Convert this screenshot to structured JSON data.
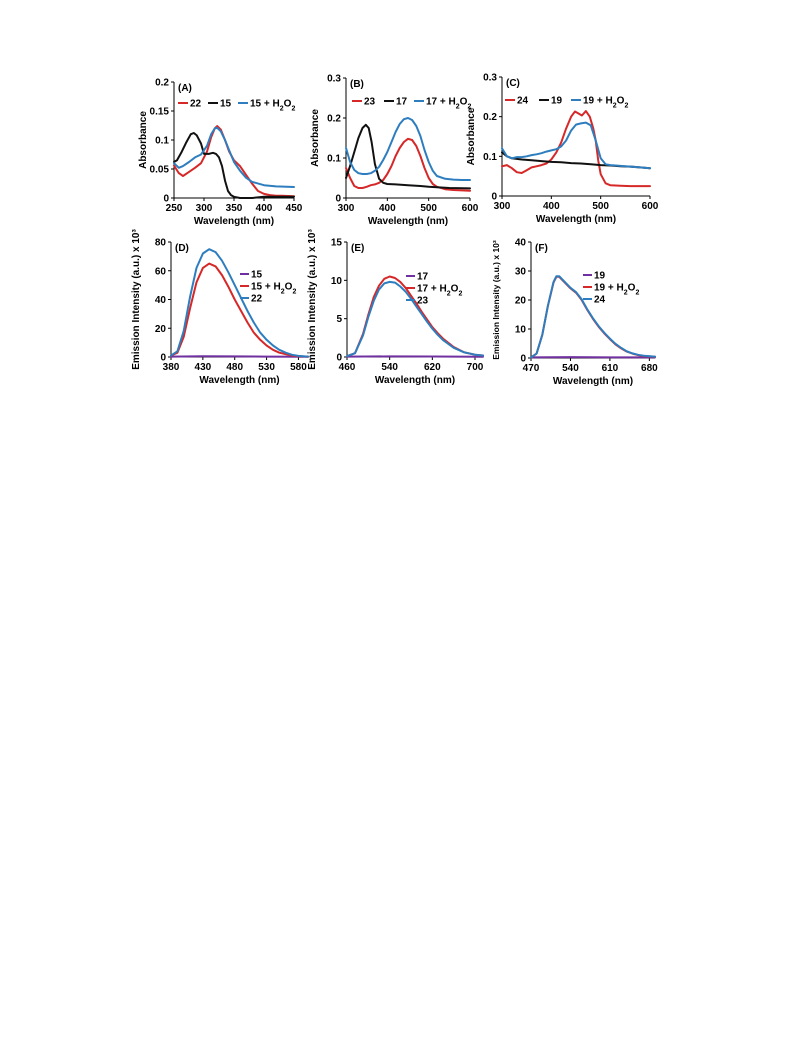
{
  "colors": {
    "red": "#d62828",
    "black": "#111111",
    "blue": "#2e7ebf",
    "purple": "#7030a0"
  },
  "chart_data": [
    {
      "id": "A",
      "panel_label": "(A)",
      "type": "line",
      "xlabel": "Wavelength (nm)",
      "ylabel": "Absorbance",
      "xlim": [
        250,
        450
      ],
      "ylim": [
        0,
        0.2
      ],
      "xticks": [
        250,
        300,
        350,
        400,
        450
      ],
      "yticks": [
        0,
        0.05,
        0.1,
        0.15,
        0.2
      ],
      "xtick_labels": [
        "250",
        "300",
        "350",
        "400",
        "450"
      ],
      "ytick_labels": [
        "0",
        "0.05",
        "0.1",
        "0.15",
        "0.2"
      ],
      "legend_position": "top",
      "series": [
        {
          "name": "22",
          "color": "#d62828",
          "x": [
            250,
            258,
            265,
            275,
            285,
            295,
            305,
            312,
            318,
            322,
            328,
            335,
            342,
            350,
            360,
            370,
            380,
            390,
            400,
            410,
            420,
            430,
            450
          ],
          "y": [
            0.056,
            0.043,
            0.038,
            0.045,
            0.052,
            0.06,
            0.08,
            0.105,
            0.12,
            0.124,
            0.118,
            0.1,
            0.08,
            0.065,
            0.055,
            0.04,
            0.025,
            0.012,
            0.007,
            0.005,
            0.004,
            0.004,
            0.003
          ]
        },
        {
          "name": "15",
          "color": "#111111",
          "x": [
            250,
            255,
            262,
            270,
            278,
            283,
            288,
            295,
            300,
            308,
            315,
            320,
            325,
            330,
            335,
            340,
            345,
            350,
            360,
            380,
            400,
            450
          ],
          "y": [
            0.062,
            0.065,
            0.078,
            0.095,
            0.11,
            0.112,
            0.108,
            0.094,
            0.076,
            0.076,
            0.078,
            0.076,
            0.07,
            0.055,
            0.03,
            0.012,
            0.005,
            0.002,
            0.0,
            0.0,
            0.002,
            0.002
          ]
        },
        {
          "name": "15 + H₂O₂",
          "color": "#2e7ebf",
          "x": [
            250,
            258,
            265,
            275,
            285,
            295,
            305,
            312,
            318,
            322,
            328,
            335,
            342,
            350,
            360,
            370,
            380,
            400,
            420,
            450
          ],
          "y": [
            0.06,
            0.052,
            0.055,
            0.062,
            0.07,
            0.075,
            0.09,
            0.11,
            0.12,
            0.121,
            0.115,
            0.1,
            0.082,
            0.062,
            0.047,
            0.035,
            0.028,
            0.022,
            0.02,
            0.019
          ]
        }
      ]
    },
    {
      "id": "B",
      "panel_label": "(B)",
      "type": "line",
      "xlabel": "Wavelength (nm)",
      "ylabel": "Absorbance",
      "xlim": [
        300,
        600
      ],
      "ylim": [
        0,
        0.3
      ],
      "xticks": [
        300,
        400,
        500,
        600
      ],
      "yticks": [
        0,
        0.1,
        0.2,
        0.3
      ],
      "xtick_labels": [
        "300",
        "400",
        "500",
        "600"
      ],
      "ytick_labels": [
        "0",
        "0.1",
        "0.2",
        "0.3"
      ],
      "legend_position": "top",
      "series": [
        {
          "name": "23",
          "color": "#d62828",
          "x": [
            300,
            310,
            320,
            330,
            340,
            350,
            360,
            370,
            380,
            390,
            400,
            410,
            420,
            430,
            440,
            450,
            460,
            470,
            480,
            490,
            500,
            510,
            520,
            540,
            560,
            580,
            600
          ],
          "y": [
            0.075,
            0.05,
            0.03,
            0.025,
            0.025,
            0.028,
            0.032,
            0.034,
            0.038,
            0.045,
            0.06,
            0.08,
            0.105,
            0.125,
            0.14,
            0.148,
            0.145,
            0.13,
            0.105,
            0.075,
            0.05,
            0.035,
            0.028,
            0.022,
            0.02,
            0.019,
            0.018
          ]
        },
        {
          "name": "17",
          "color": "#111111",
          "x": [
            300,
            310,
            320,
            330,
            340,
            348,
            355,
            362,
            370,
            380,
            390,
            400,
            420,
            450,
            480,
            500,
            550,
            600
          ],
          "y": [
            0.05,
            0.08,
            0.115,
            0.15,
            0.175,
            0.183,
            0.175,
            0.14,
            0.085,
            0.048,
            0.038,
            0.035,
            0.034,
            0.032,
            0.03,
            0.028,
            0.025,
            0.024
          ]
        },
        {
          "name": "17 + H₂O₂",
          "color": "#2e7ebf",
          "x": [
            300,
            310,
            320,
            330,
            340,
            350,
            360,
            370,
            380,
            390,
            400,
            410,
            420,
            430,
            440,
            450,
            460,
            470,
            480,
            490,
            500,
            510,
            520,
            540,
            560,
            580,
            600
          ],
          "y": [
            0.125,
            0.09,
            0.07,
            0.062,
            0.06,
            0.06,
            0.062,
            0.068,
            0.078,
            0.095,
            0.115,
            0.14,
            0.165,
            0.185,
            0.197,
            0.2,
            0.195,
            0.18,
            0.155,
            0.12,
            0.09,
            0.068,
            0.055,
            0.048,
            0.046,
            0.045,
            0.045
          ]
        }
      ]
    },
    {
      "id": "C",
      "panel_label": "(C)",
      "type": "line",
      "xlabel": "Wavelength (nm)",
      "ylabel": "Absorbance",
      "xlim": [
        300,
        600
      ],
      "ylim": [
        0,
        0.3
      ],
      "xticks": [
        300,
        400,
        500,
        600
      ],
      "yticks": [
        0,
        0.1,
        0.2,
        0.3
      ],
      "xtick_labels": [
        "300",
        "400",
        "500",
        "600"
      ],
      "ytick_labels": [
        "0",
        "0.1",
        "0.2",
        "0.3"
      ],
      "legend_position": "top",
      "series": [
        {
          "name": "24",
          "color": "#d62828",
          "x": [
            300,
            310,
            320,
            330,
            340,
            350,
            360,
            370,
            380,
            390,
            400,
            410,
            420,
            430,
            440,
            448,
            455,
            462,
            470,
            478,
            485,
            490,
            495,
            500,
            510,
            520,
            540,
            560,
            600
          ],
          "y": [
            0.075,
            0.078,
            0.07,
            0.06,
            0.058,
            0.065,
            0.072,
            0.075,
            0.078,
            0.082,
            0.092,
            0.11,
            0.135,
            0.17,
            0.2,
            0.213,
            0.208,
            0.203,
            0.214,
            0.2,
            0.17,
            0.14,
            0.09,
            0.055,
            0.032,
            0.027,
            0.026,
            0.025,
            0.025
          ]
        },
        {
          "name": "19",
          "color": "#111111",
          "x": [
            300,
            310,
            320,
            340,
            360,
            380,
            400,
            420,
            440,
            460,
            480,
            500,
            520,
            540,
            560,
            580,
            600
          ],
          "y": [
            0.11,
            0.1,
            0.095,
            0.092,
            0.09,
            0.088,
            0.086,
            0.085,
            0.083,
            0.082,
            0.08,
            0.078,
            0.077,
            0.075,
            0.074,
            0.072,
            0.07
          ]
        },
        {
          "name": "19 + H₂O₂",
          "color": "#2e7ebf",
          "x": [
            300,
            310,
            320,
            330,
            340,
            350,
            360,
            370,
            380,
            390,
            400,
            410,
            420,
            430,
            440,
            450,
            460,
            470,
            480,
            490,
            500,
            510,
            520,
            540,
            560,
            580,
            600
          ],
          "y": [
            0.12,
            0.1,
            0.095,
            0.098,
            0.098,
            0.1,
            0.103,
            0.105,
            0.108,
            0.112,
            0.115,
            0.118,
            0.125,
            0.14,
            0.165,
            0.18,
            0.183,
            0.185,
            0.178,
            0.14,
            0.095,
            0.08,
            0.078,
            0.076,
            0.074,
            0.072,
            0.07
          ]
        }
      ]
    },
    {
      "id": "D",
      "panel_label": "(D)",
      "type": "line",
      "xlabel": "Wavelength (nm)",
      "ylabel": "Emission Intensity (a.u.) x 10³",
      "xlim": [
        380,
        595
      ],
      "ylim": [
        0,
        80
      ],
      "xticks": [
        380,
        430,
        480,
        530,
        580
      ],
      "yticks": [
        0,
        20,
        40,
        60,
        80
      ],
      "xtick_labels": [
        "380",
        "430",
        "480",
        "530",
        "580"
      ],
      "ytick_labels": [
        "0",
        "20",
        "40",
        "60",
        "80"
      ],
      "legend_position": "top-right",
      "series": [
        {
          "name": "15",
          "color": "#7030a0",
          "x": [
            380,
            430,
            480,
            530,
            595
          ],
          "y": [
            0.3,
            0.5,
            0.4,
            0.3,
            0.2
          ]
        },
        {
          "name": "15 + H₂O₂",
          "color": "#d62828",
          "x": [
            380,
            390,
            400,
            410,
            420,
            430,
            440,
            450,
            460,
            470,
            480,
            490,
            500,
            510,
            520,
            530,
            540,
            550,
            560,
            570,
            580,
            595
          ],
          "y": [
            1,
            3,
            14,
            34,
            52,
            62,
            65,
            63,
            57,
            49,
            40,
            32,
            24,
            17,
            12,
            8,
            5,
            3,
            2,
            1,
            0.5,
            0.3
          ]
        },
        {
          "name": "22",
          "color": "#2e7ebf",
          "x": [
            380,
            390,
            400,
            410,
            420,
            430,
            440,
            450,
            460,
            470,
            480,
            490,
            500,
            510,
            520,
            530,
            540,
            550,
            560,
            570,
            580,
            595
          ],
          "y": [
            1,
            4,
            18,
            42,
            62,
            72,
            75,
            73,
            67,
            59,
            50,
            41,
            32,
            24,
            17,
            12,
            8,
            5,
            3,
            1.5,
            0.8,
            0.3
          ]
        }
      ]
    },
    {
      "id": "E",
      "panel_label": "(E)",
      "type": "line",
      "xlabel": "Wavelength (nm)",
      "ylabel": "Emission Intensity (a.u.) x 10³",
      "xlim": [
        460,
        715
      ],
      "ylim": [
        0,
        15
      ],
      "xticks": [
        460,
        540,
        620,
        700
      ],
      "yticks": [
        0,
        5,
        10,
        15
      ],
      "xtick_labels": [
        "460",
        "540",
        "620",
        "700"
      ],
      "ytick_labels": [
        "0",
        "5",
        "10",
        "15"
      ],
      "legend_position": "top-right",
      "series": [
        {
          "name": "17",
          "color": "#7030a0",
          "x": [
            460,
            540,
            620,
            715
          ],
          "y": [
            0.05,
            0.08,
            0.06,
            0.04
          ]
        },
        {
          "name": "17 + H₂O₂",
          "color": "#d62828",
          "x": [
            460,
            475,
            490,
            500,
            510,
            520,
            530,
            540,
            550,
            560,
            570,
            580,
            590,
            600,
            610,
            620,
            630,
            640,
            660,
            680,
            700,
            715
          ],
          "y": [
            0.1,
            0.5,
            3,
            5.5,
            7.8,
            9.3,
            10.2,
            10.5,
            10.3,
            9.8,
            9.0,
            8.0,
            7.0,
            5.9,
            4.9,
            3.9,
            3.1,
            2.4,
            1.3,
            0.6,
            0.3,
            0.2
          ]
        },
        {
          "name": "23",
          "color": "#2e7ebf",
          "x": [
            460,
            475,
            490,
            500,
            510,
            520,
            530,
            540,
            550,
            560,
            570,
            580,
            590,
            600,
            610,
            620,
            630,
            640,
            660,
            680,
            700,
            715
          ],
          "y": [
            0.1,
            0.5,
            2.8,
            5.2,
            7.3,
            8.8,
            9.6,
            9.8,
            9.7,
            9.2,
            8.5,
            7.6,
            6.6,
            5.6,
            4.6,
            3.7,
            2.9,
            2.2,
            1.2,
            0.6,
            0.3,
            0.2
          ]
        }
      ]
    },
    {
      "id": "F",
      "panel_label": "(F)",
      "type": "line",
      "xlabel": "Wavelength (nm)",
      "ylabel": "Emission Intensity (a.u.) x 10³",
      "xlim": [
        470,
        690
      ],
      "ylim": [
        0,
        40
      ],
      "xticks": [
        470,
        540,
        610,
        680
      ],
      "yticks": [
        0,
        10,
        20,
        30,
        40
      ],
      "xtick_labels": [
        "470",
        "540",
        "610",
        "680"
      ],
      "ytick_labels": [
        "0",
        "10",
        "20",
        "30",
        "40"
      ],
      "legend_position": "top-right",
      "series": [
        {
          "name": "19",
          "color": "#7030a0",
          "x": [
            470,
            540,
            610,
            690
          ],
          "y": [
            0.2,
            0.3,
            0.2,
            0.2
          ]
        },
        {
          "name": "19 + H₂O₂",
          "color": "#d62828",
          "x": [
            470,
            480,
            490,
            500,
            510,
            515,
            520,
            530,
            540,
            550,
            560,
            570,
            580,
            590,
            600,
            610,
            620,
            630,
            640,
            650,
            660,
            670,
            690
          ],
          "y": [
            0.2,
            1.5,
            8,
            18,
            26,
            28,
            28,
            26,
            24,
            22.5,
            20,
            16.5,
            13.5,
            10.8,
            8.5,
            6.5,
            4.7,
            3.3,
            2.2,
            1.5,
            1.0,
            0.7,
            0.4
          ]
        },
        {
          "name": "24",
          "color": "#2e7ebf",
          "x": [
            470,
            480,
            490,
            500,
            510,
            515,
            520,
            530,
            540,
            550,
            560,
            570,
            580,
            590,
            600,
            610,
            620,
            630,
            640,
            650,
            660,
            670,
            690
          ],
          "y": [
            0.2,
            1.5,
            8,
            18,
            26.2,
            28.2,
            28.2,
            26.2,
            24.2,
            22.7,
            20.2,
            16.7,
            13.7,
            11,
            8.7,
            6.7,
            4.9,
            3.5,
            2.3,
            1.6,
            1.1,
            0.8,
            0.5
          ]
        }
      ]
    }
  ]
}
